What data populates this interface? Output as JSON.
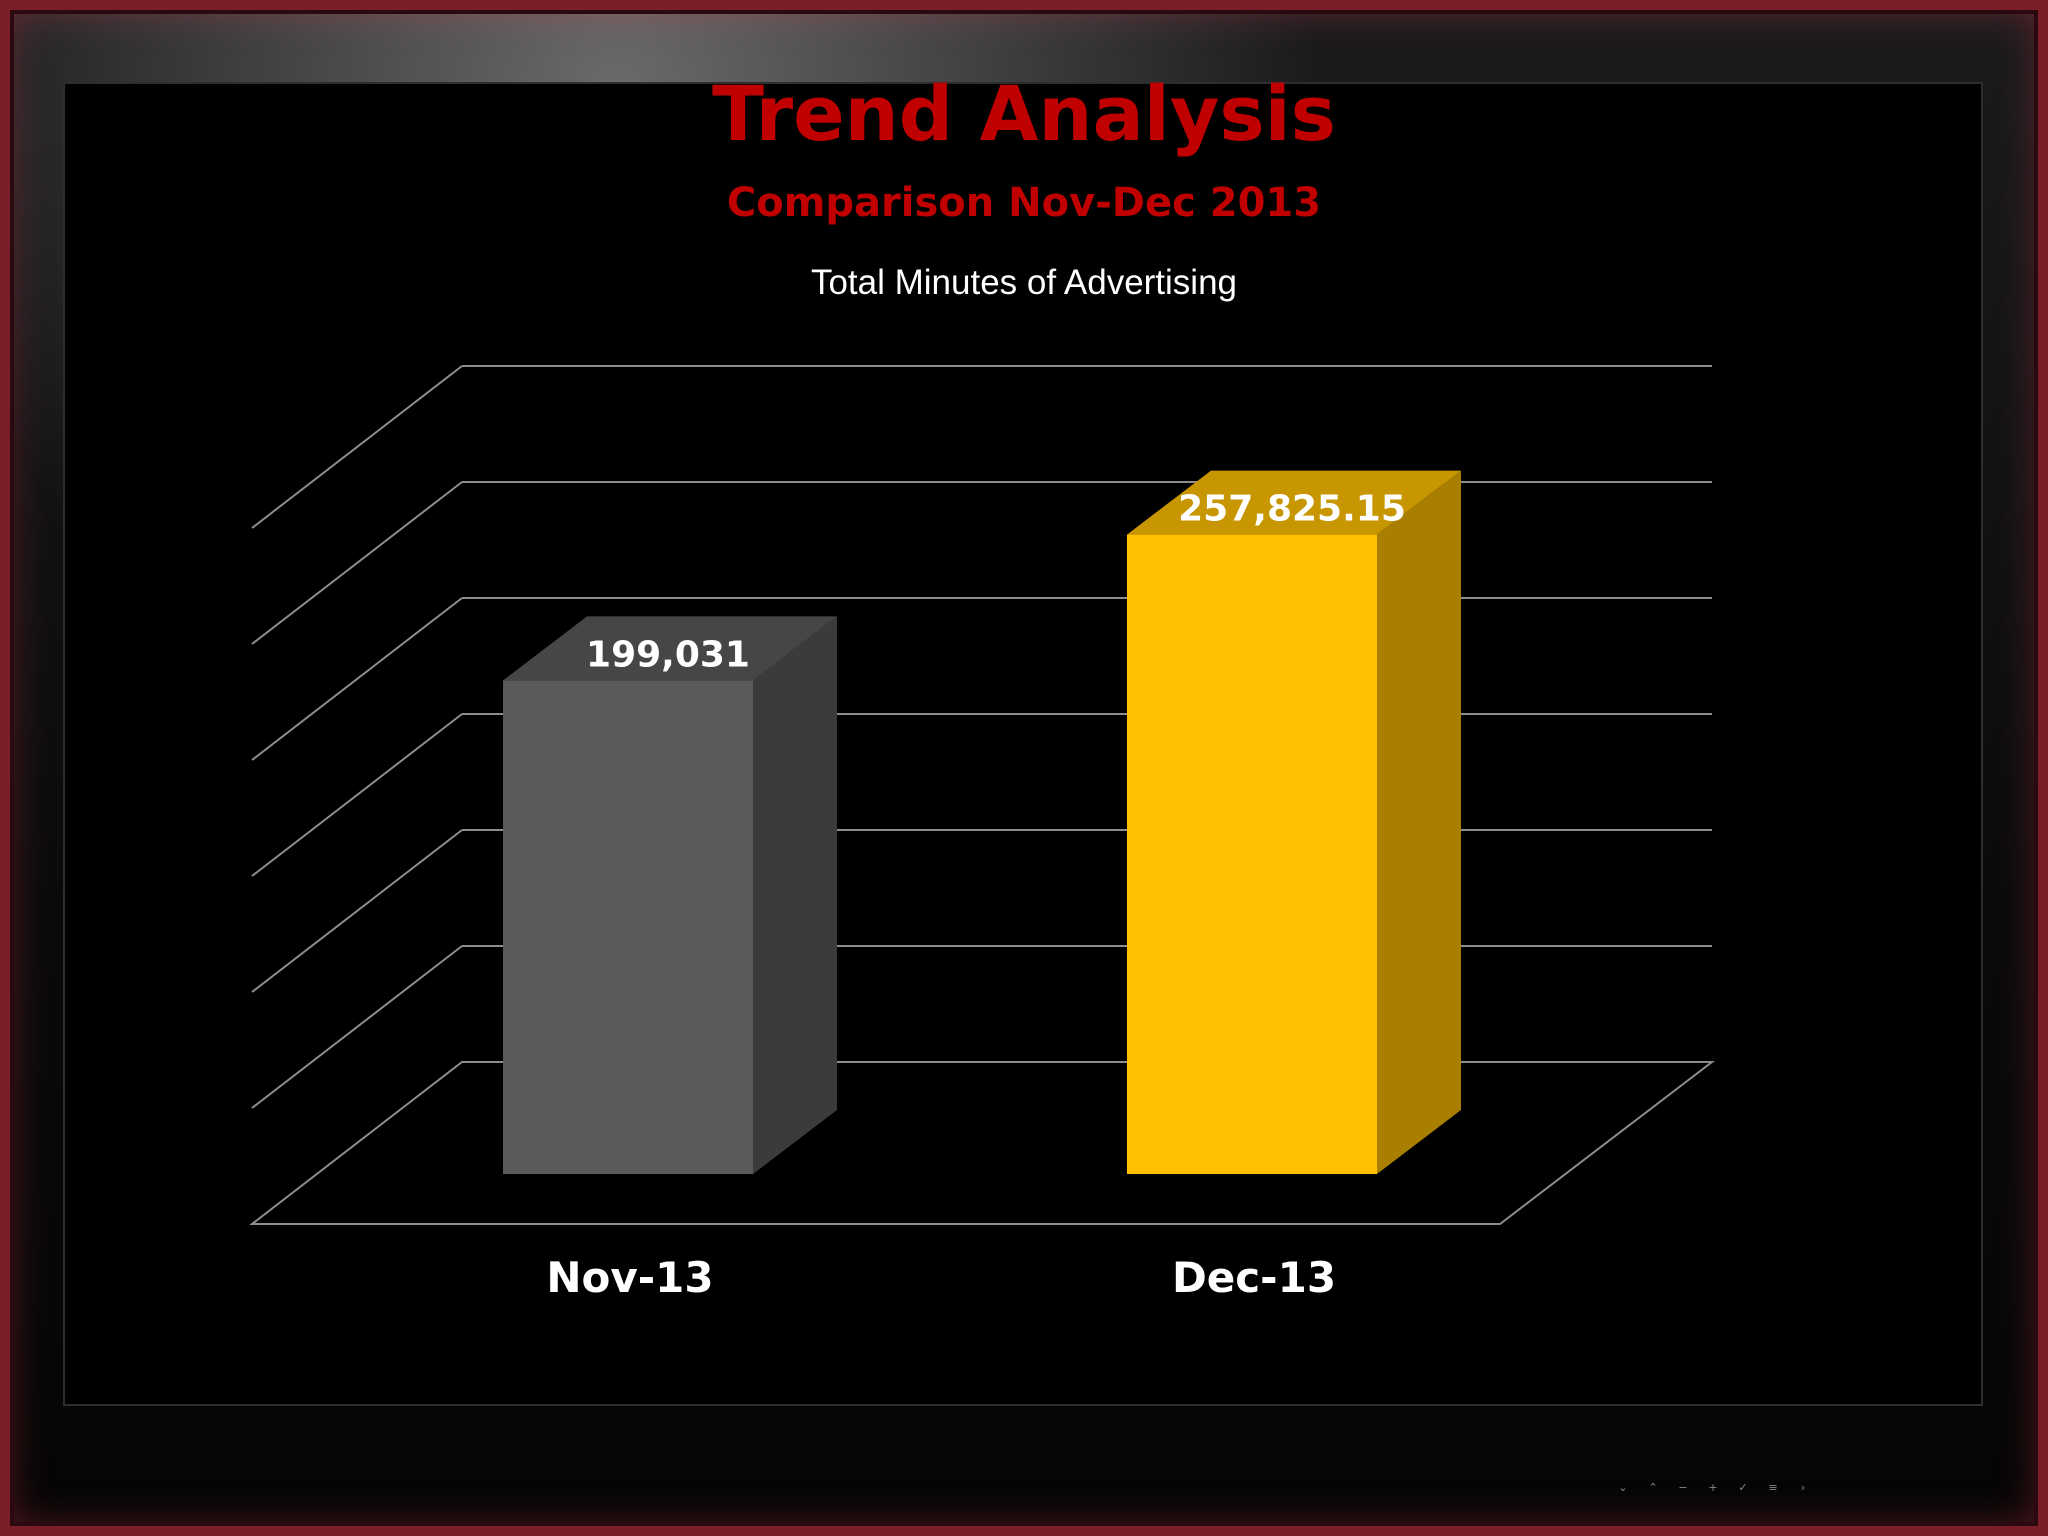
{
  "header": {
    "title": "Trend Analysis",
    "subtitle": "Comparison Nov-Dec 2013"
  },
  "chart_data": {
    "type": "bar",
    "title": "Total Minutes of Advertising",
    "categories": [
      "Nov-13",
      "Dec-13"
    ],
    "values": [
      199031,
      257825.15
    ],
    "value_labels": [
      "199,031",
      "257,825.15"
    ],
    "bar_colors": [
      "#5a595c",
      "#ffc000"
    ],
    "ylim": [
      0,
      300000
    ],
    "gridlines": 7,
    "grid": true,
    "style": "3d-column",
    "xlabel": "",
    "ylabel": ""
  },
  "controls": [
    "⌄",
    "⌃",
    "−",
    "+",
    "✓",
    "≡",
    "›"
  ]
}
